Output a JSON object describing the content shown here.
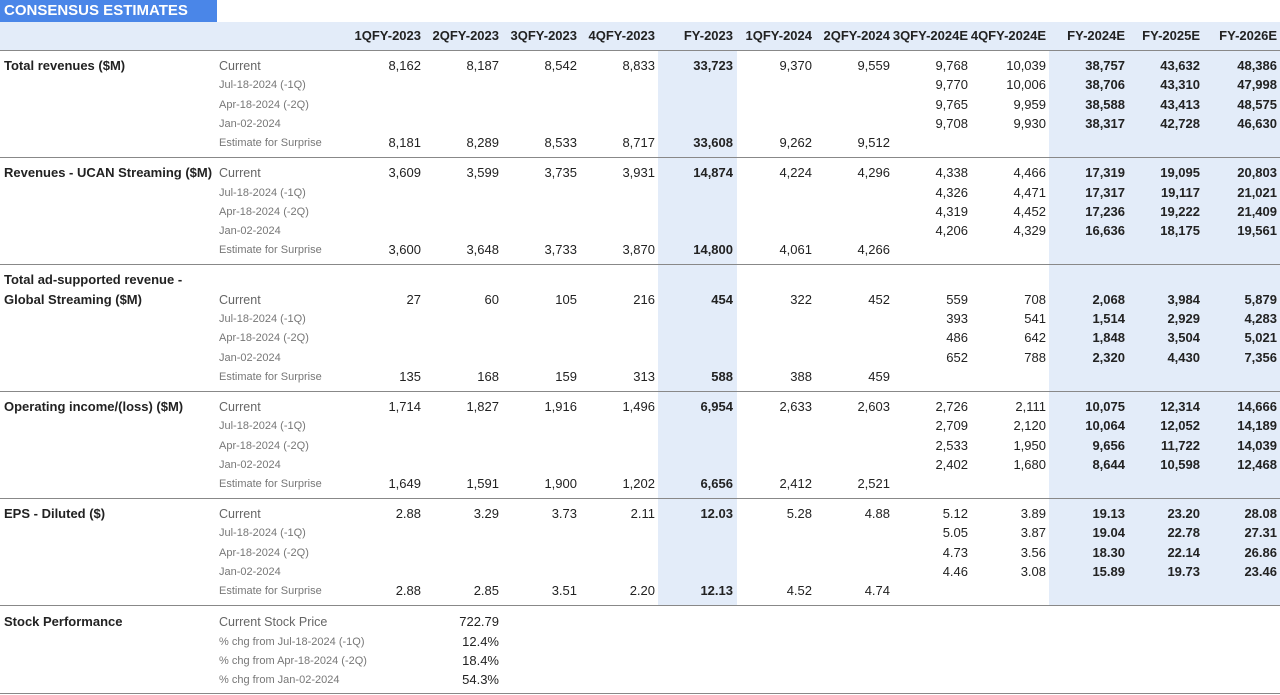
{
  "header": {
    "title": "CONSENSUS ESTIMATES",
    "columns": [
      "1QFY-2023",
      "2QFY-2023",
      "3QFY-2023",
      "4QFY-2023",
      "FY-2023",
      "1QFY-2024",
      "2QFY-2024",
      "3QFY-2024E",
      "4QFY-2024E",
      "FY-2024E",
      "FY-2025E",
      "FY-2026E"
    ]
  },
  "sections": [
    {
      "label": [
        "Total revenues ($M)"
      ],
      "rows": [
        {
          "label": "Current",
          "values": [
            "8,162",
            "8,187",
            "8,542",
            "8,833",
            "33,723",
            "9,370",
            "9,559",
            "9,768",
            "10,039",
            "38,757",
            "43,632",
            "48,386"
          ]
        },
        {
          "label": "Jul-18-2024 (-1Q)",
          "values": [
            null,
            null,
            null,
            null,
            null,
            null,
            null,
            "9,770",
            "10,006",
            "38,706",
            "43,310",
            "47,998"
          ]
        },
        {
          "label": "Apr-18-2024 (-2Q)",
          "values": [
            null,
            null,
            null,
            null,
            null,
            null,
            null,
            "9,765",
            "9,959",
            "38,588",
            "43,413",
            "48,575"
          ]
        },
        {
          "label": "Jan-02-2024",
          "values": [
            null,
            null,
            null,
            null,
            null,
            null,
            null,
            "9,708",
            "9,930",
            "38,317",
            "42,728",
            "46,630"
          ]
        },
        {
          "label": "Estimate for Surprise",
          "values": [
            "8,181",
            "8,289",
            "8,533",
            "8,717",
            "33,608",
            "9,262",
            "9,512",
            null,
            null,
            null,
            null,
            null
          ]
        }
      ]
    },
    {
      "label": [
        "Revenues - UCAN Streaming ($M)"
      ],
      "rows": [
        {
          "label": "Current",
          "values": [
            "3,609",
            "3,599",
            "3,735",
            "3,931",
            "14,874",
            "4,224",
            "4,296",
            "4,338",
            "4,466",
            "17,319",
            "19,095",
            "20,803"
          ]
        },
        {
          "label": "Jul-18-2024 (-1Q)",
          "values": [
            null,
            null,
            null,
            null,
            null,
            null,
            null,
            "4,326",
            "4,471",
            "17,317",
            "19,117",
            "21,021"
          ]
        },
        {
          "label": "Apr-18-2024 (-2Q)",
          "values": [
            null,
            null,
            null,
            null,
            null,
            null,
            null,
            "4,319",
            "4,452",
            "17,236",
            "19,222",
            "21,409"
          ]
        },
        {
          "label": "Jan-02-2024",
          "values": [
            null,
            null,
            null,
            null,
            null,
            null,
            null,
            "4,206",
            "4,329",
            "16,636",
            "18,175",
            "19,561"
          ]
        },
        {
          "label": "Estimate for Surprise",
          "values": [
            "3,600",
            "3,648",
            "3,733",
            "3,870",
            "14,800",
            "4,061",
            "4,266",
            null,
            null,
            null,
            null,
            null
          ]
        }
      ]
    },
    {
      "label": [
        "Total ad-supported revenue -",
        "Global Streaming ($M)"
      ],
      "rows": [
        {
          "label": "Current",
          "values": [
            "27",
            "60",
            "105",
            "216",
            "454",
            "322",
            "452",
            "559",
            "708",
            "2,068",
            "3,984",
            "5,879"
          ]
        },
        {
          "label": "Jul-18-2024 (-1Q)",
          "values": [
            null,
            null,
            null,
            null,
            null,
            null,
            null,
            "393",
            "541",
            "1,514",
            "2,929",
            "4,283"
          ]
        },
        {
          "label": "Apr-18-2024 (-2Q)",
          "values": [
            null,
            null,
            null,
            null,
            null,
            null,
            null,
            "486",
            "642",
            "1,848",
            "3,504",
            "5,021"
          ]
        },
        {
          "label": "Jan-02-2024",
          "values": [
            null,
            null,
            null,
            null,
            null,
            null,
            null,
            "652",
            "788",
            "2,320",
            "4,430",
            "7,356"
          ]
        },
        {
          "label": "Estimate for Surprise",
          "values": [
            "135",
            "168",
            "159",
            "313",
            "588",
            "388",
            "459",
            null,
            null,
            null,
            null,
            null
          ]
        }
      ]
    },
    {
      "label": [
        "Operating income/(loss) ($M)"
      ],
      "rows": [
        {
          "label": "Current",
          "values": [
            "1,714",
            "1,827",
            "1,916",
            "1,496",
            "6,954",
            "2,633",
            "2,603",
            "2,726",
            "2,111",
            "10,075",
            "12,314",
            "14,666"
          ]
        },
        {
          "label": "Jul-18-2024 (-1Q)",
          "values": [
            null,
            null,
            null,
            null,
            null,
            null,
            null,
            "2,709",
            "2,120",
            "10,064",
            "12,052",
            "14,189"
          ]
        },
        {
          "label": "Apr-18-2024 (-2Q)",
          "values": [
            null,
            null,
            null,
            null,
            null,
            null,
            null,
            "2,533",
            "1,950",
            "9,656",
            "11,722",
            "14,039"
          ]
        },
        {
          "label": "Jan-02-2024",
          "values": [
            null,
            null,
            null,
            null,
            null,
            null,
            null,
            "2,402",
            "1,680",
            "8,644",
            "10,598",
            "12,468"
          ]
        },
        {
          "label": "Estimate for Surprise",
          "values": [
            "1,649",
            "1,591",
            "1,900",
            "1,202",
            "6,656",
            "2,412",
            "2,521",
            null,
            null,
            null,
            null,
            null
          ]
        }
      ]
    },
    {
      "label": [
        "EPS - Diluted ($)"
      ],
      "rows": [
        {
          "label": "Current",
          "values": [
            "2.88",
            "3.29",
            "3.73",
            "2.11",
            "12.03",
            "5.28",
            "4.88",
            "5.12",
            "3.89",
            "19.13",
            "23.20",
            "28.08"
          ]
        },
        {
          "label": "Jul-18-2024 (-1Q)",
          "values": [
            null,
            null,
            null,
            null,
            null,
            null,
            null,
            "5.05",
            "3.87",
            "19.04",
            "22.78",
            "27.31"
          ]
        },
        {
          "label": "Apr-18-2024 (-2Q)",
          "values": [
            null,
            null,
            null,
            null,
            null,
            null,
            null,
            "4.73",
            "3.56",
            "18.30",
            "22.14",
            "26.86"
          ]
        },
        {
          "label": "Jan-02-2024",
          "values": [
            null,
            null,
            null,
            null,
            null,
            null,
            null,
            "4.46",
            "3.08",
            "15.89",
            "19.73",
            "23.46"
          ]
        },
        {
          "label": "Estimate for Surprise",
          "values": [
            "2.88",
            "2.85",
            "3.51",
            "2.20",
            "12.13",
            "4.52",
            "4.74",
            null,
            null,
            null,
            null,
            null
          ]
        }
      ]
    }
  ],
  "stock_performance": {
    "label": "Stock Performance",
    "rows": [
      {
        "label": "Current Stock Price",
        "value": "722.79"
      },
      {
        "label": "% chg from Jul-18-2024 (-1Q)",
        "value": "12.4%"
      },
      {
        "label": "% chg from Apr-18-2024 (-2Q)",
        "value": "18.4%"
      },
      {
        "label": "% chg from Jan-02-2024",
        "value": "54.3%"
      }
    ]
  }
}
